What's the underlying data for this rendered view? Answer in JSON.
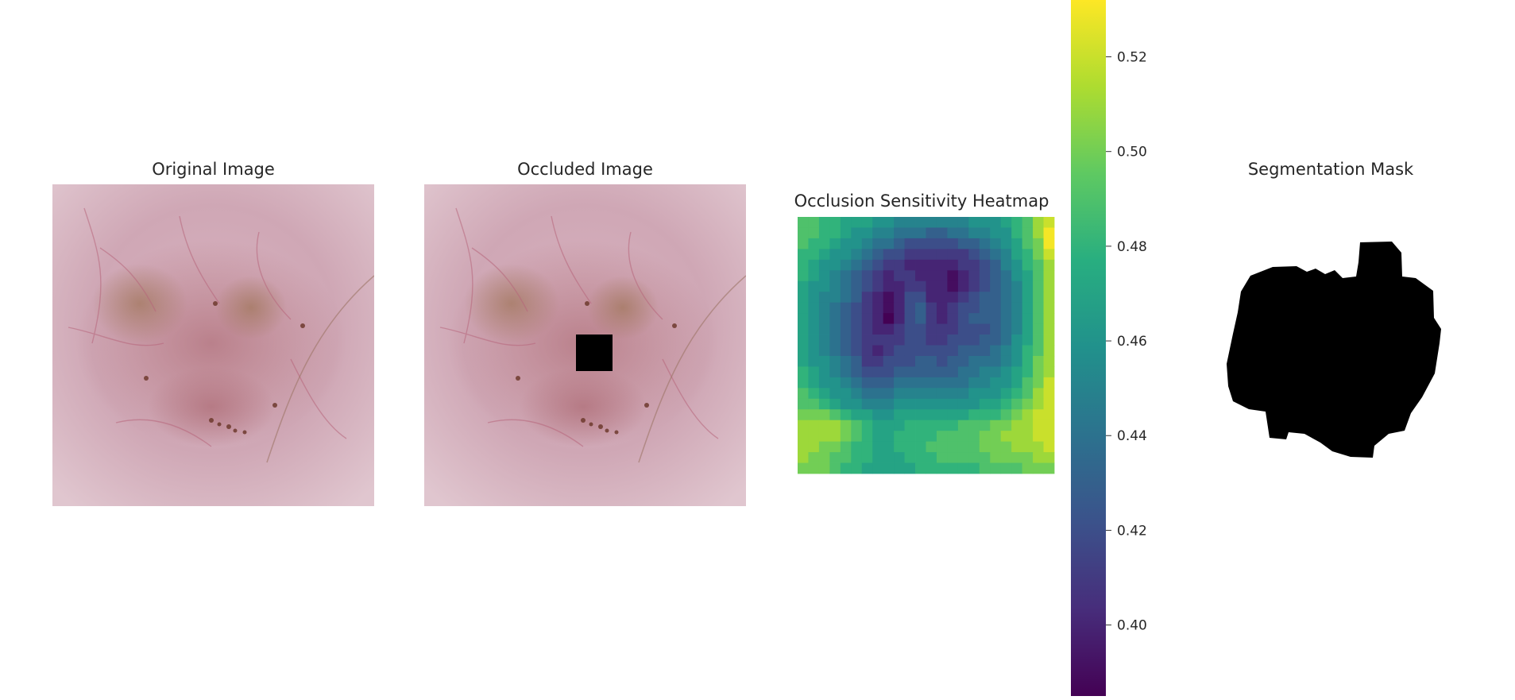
{
  "panels": {
    "original": {
      "title": "Original Image"
    },
    "occluded": {
      "title": "Occluded Image"
    },
    "heatmap": {
      "title": "Occlusion Sensitivity Heatmap"
    },
    "mask": {
      "title": "Segmentation Mask"
    }
  },
  "chart_data": {
    "type": "heatmap",
    "title": "Occlusion Sensitivity Heatmap",
    "colormap": "viridis",
    "grid_size": [
      24,
      24
    ],
    "colorbar": {
      "range": [
        0.385,
        0.532
      ],
      "ticks": [
        0.4,
        0.42,
        0.44,
        0.46,
        0.48,
        0.5,
        0.52
      ],
      "tick_labels": [
        "0.40",
        "0.42",
        "0.44",
        "0.46",
        "0.48",
        "0.50",
        "0.52"
      ]
    },
    "values": [
      [
        0.49,
        0.49,
        0.48,
        0.48,
        0.47,
        0.47,
        0.47,
        0.46,
        0.46,
        0.45,
        0.45,
        0.45,
        0.45,
        0.45,
        0.45,
        0.45,
        0.46,
        0.46,
        0.46,
        0.47,
        0.48,
        0.49,
        0.51,
        0.52
      ],
      [
        0.49,
        0.49,
        0.48,
        0.48,
        0.47,
        0.46,
        0.46,
        0.45,
        0.45,
        0.44,
        0.44,
        0.44,
        0.43,
        0.43,
        0.44,
        0.44,
        0.45,
        0.45,
        0.46,
        0.46,
        0.48,
        0.49,
        0.51,
        0.53
      ],
      [
        0.49,
        0.48,
        0.48,
        0.47,
        0.46,
        0.46,
        0.45,
        0.44,
        0.44,
        0.43,
        0.42,
        0.42,
        0.42,
        0.42,
        0.42,
        0.43,
        0.43,
        0.44,
        0.45,
        0.46,
        0.47,
        0.49,
        0.5,
        0.53
      ],
      [
        0.48,
        0.48,
        0.47,
        0.46,
        0.46,
        0.45,
        0.44,
        0.43,
        0.42,
        0.42,
        0.41,
        0.41,
        0.41,
        0.41,
        0.41,
        0.41,
        0.42,
        0.43,
        0.44,
        0.45,
        0.47,
        0.48,
        0.5,
        0.52
      ],
      [
        0.48,
        0.47,
        0.46,
        0.46,
        0.45,
        0.44,
        0.43,
        0.42,
        0.41,
        0.41,
        0.4,
        0.4,
        0.4,
        0.4,
        0.4,
        0.41,
        0.41,
        0.42,
        0.43,
        0.45,
        0.46,
        0.48,
        0.49,
        0.51
      ],
      [
        0.48,
        0.47,
        0.46,
        0.45,
        0.44,
        0.43,
        0.42,
        0.41,
        0.4,
        0.41,
        0.41,
        0.4,
        0.4,
        0.4,
        0.39,
        0.4,
        0.41,
        0.42,
        0.43,
        0.44,
        0.46,
        0.47,
        0.49,
        0.51
      ],
      [
        0.47,
        0.46,
        0.46,
        0.45,
        0.44,
        0.43,
        0.42,
        0.41,
        0.4,
        0.4,
        0.41,
        0.41,
        0.4,
        0.4,
        0.39,
        0.4,
        0.41,
        0.42,
        0.43,
        0.44,
        0.45,
        0.47,
        0.49,
        0.51
      ],
      [
        0.47,
        0.46,
        0.45,
        0.45,
        0.44,
        0.43,
        0.41,
        0.4,
        0.39,
        0.4,
        0.42,
        0.42,
        0.4,
        0.4,
        0.4,
        0.41,
        0.42,
        0.43,
        0.43,
        0.44,
        0.45,
        0.47,
        0.49,
        0.51
      ],
      [
        0.47,
        0.46,
        0.45,
        0.44,
        0.43,
        0.42,
        0.41,
        0.4,
        0.39,
        0.4,
        0.42,
        0.43,
        0.41,
        0.4,
        0.41,
        0.42,
        0.42,
        0.43,
        0.43,
        0.44,
        0.45,
        0.47,
        0.49,
        0.51
      ],
      [
        0.47,
        0.46,
        0.45,
        0.44,
        0.43,
        0.42,
        0.41,
        0.4,
        0.38,
        0.4,
        0.42,
        0.43,
        0.41,
        0.4,
        0.41,
        0.42,
        0.43,
        0.43,
        0.43,
        0.44,
        0.45,
        0.47,
        0.49,
        0.51
      ],
      [
        0.47,
        0.46,
        0.45,
        0.44,
        0.43,
        0.42,
        0.41,
        0.4,
        0.4,
        0.41,
        0.42,
        0.42,
        0.41,
        0.41,
        0.41,
        0.42,
        0.42,
        0.42,
        0.43,
        0.44,
        0.45,
        0.47,
        0.49,
        0.51
      ],
      [
        0.47,
        0.46,
        0.45,
        0.44,
        0.43,
        0.42,
        0.41,
        0.41,
        0.41,
        0.41,
        0.42,
        0.42,
        0.41,
        0.41,
        0.42,
        0.42,
        0.42,
        0.43,
        0.43,
        0.44,
        0.46,
        0.47,
        0.49,
        0.51
      ],
      [
        0.47,
        0.46,
        0.45,
        0.44,
        0.43,
        0.42,
        0.41,
        0.4,
        0.41,
        0.42,
        0.42,
        0.42,
        0.42,
        0.42,
        0.42,
        0.43,
        0.43,
        0.43,
        0.44,
        0.45,
        0.46,
        0.48,
        0.49,
        0.51
      ],
      [
        0.47,
        0.46,
        0.46,
        0.45,
        0.44,
        0.43,
        0.41,
        0.41,
        0.42,
        0.42,
        0.42,
        0.43,
        0.43,
        0.42,
        0.43,
        0.43,
        0.44,
        0.44,
        0.44,
        0.45,
        0.46,
        0.48,
        0.5,
        0.51
      ],
      [
        0.48,
        0.47,
        0.46,
        0.45,
        0.44,
        0.43,
        0.42,
        0.42,
        0.42,
        0.43,
        0.43,
        0.43,
        0.43,
        0.43,
        0.43,
        0.44,
        0.44,
        0.45,
        0.45,
        0.46,
        0.47,
        0.48,
        0.5,
        0.51
      ],
      [
        0.48,
        0.47,
        0.46,
        0.46,
        0.45,
        0.44,
        0.43,
        0.43,
        0.43,
        0.44,
        0.44,
        0.44,
        0.44,
        0.44,
        0.44,
        0.44,
        0.45,
        0.45,
        0.46,
        0.46,
        0.47,
        0.49,
        0.5,
        0.52
      ],
      [
        0.49,
        0.48,
        0.47,
        0.46,
        0.46,
        0.45,
        0.44,
        0.44,
        0.44,
        0.45,
        0.45,
        0.45,
        0.45,
        0.45,
        0.45,
        0.45,
        0.46,
        0.46,
        0.46,
        0.47,
        0.48,
        0.49,
        0.51,
        0.52
      ],
      [
        0.49,
        0.49,
        0.48,
        0.47,
        0.46,
        0.46,
        0.45,
        0.45,
        0.45,
        0.46,
        0.46,
        0.46,
        0.46,
        0.46,
        0.46,
        0.46,
        0.46,
        0.47,
        0.47,
        0.48,
        0.49,
        0.5,
        0.51,
        0.52
      ],
      [
        0.5,
        0.5,
        0.5,
        0.49,
        0.48,
        0.47,
        0.47,
        0.46,
        0.46,
        0.47,
        0.47,
        0.47,
        0.47,
        0.47,
        0.47,
        0.47,
        0.48,
        0.48,
        0.48,
        0.49,
        0.5,
        0.51,
        0.52,
        0.52
      ],
      [
        0.51,
        0.51,
        0.51,
        0.51,
        0.5,
        0.49,
        0.48,
        0.47,
        0.47,
        0.47,
        0.48,
        0.48,
        0.48,
        0.48,
        0.48,
        0.49,
        0.49,
        0.49,
        0.5,
        0.5,
        0.51,
        0.51,
        0.52,
        0.52
      ],
      [
        0.51,
        0.51,
        0.51,
        0.51,
        0.5,
        0.49,
        0.48,
        0.47,
        0.47,
        0.48,
        0.48,
        0.48,
        0.48,
        0.49,
        0.49,
        0.49,
        0.49,
        0.5,
        0.5,
        0.51,
        0.51,
        0.51,
        0.52,
        0.52
      ],
      [
        0.51,
        0.51,
        0.5,
        0.5,
        0.49,
        0.48,
        0.48,
        0.47,
        0.47,
        0.48,
        0.48,
        0.48,
        0.49,
        0.49,
        0.49,
        0.49,
        0.49,
        0.5,
        0.5,
        0.5,
        0.51,
        0.51,
        0.51,
        0.52
      ],
      [
        0.51,
        0.5,
        0.5,
        0.49,
        0.49,
        0.48,
        0.48,
        0.47,
        0.47,
        0.47,
        0.48,
        0.48,
        0.48,
        0.49,
        0.49,
        0.49,
        0.49,
        0.49,
        0.5,
        0.5,
        0.5,
        0.5,
        0.51,
        0.51
      ],
      [
        0.5,
        0.5,
        0.5,
        0.49,
        0.48,
        0.48,
        0.47,
        0.47,
        0.47,
        0.47,
        0.47,
        0.48,
        0.48,
        0.48,
        0.48,
        0.48,
        0.48,
        0.49,
        0.49,
        0.49,
        0.49,
        0.5,
        0.5,
        0.5
      ]
    ]
  }
}
